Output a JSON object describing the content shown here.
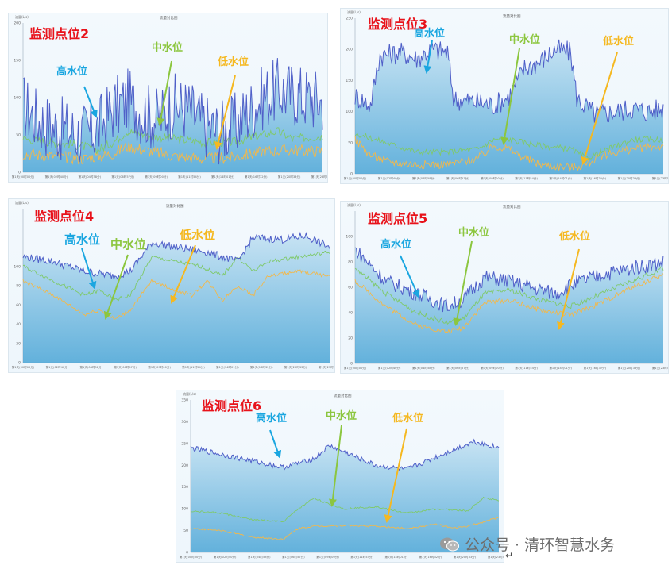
{
  "colors": {
    "high": "#4f5fc8",
    "mid": "#7fc96b",
    "low": "#f2b84b",
    "fill": "#4aa5d6",
    "title": "#e8121a"
  },
  "watermark": {
    "text": "公众号 · 清环智慧水务",
    "icon": "wechat-icon"
  },
  "chart_data": [
    {
      "id": "p2",
      "type": "line",
      "title": "监测点位2",
      "chart_title": "流量对比图",
      "y_unit": "流量(L/s)",
      "ylim": [
        0,
        200
      ],
      "yticks": [
        "0",
        "50",
        "100",
        "150",
        "200"
      ],
      "xticks": [
        "第1天(00时00分)",
        "第1天(02时40分)",
        "第1天(04时58分)",
        "第1天(06时57分)",
        "第1天(09时00分)",
        "第1天(11时54分)",
        "第1天(14时01分)",
        "第1天(16时32分)",
        "第1天(20时33分)",
        "第1天(23时59分)"
      ],
      "annotations": {
        "high": "高水位",
        "mid": "中水位",
        "low": "低水位"
      },
      "series": [
        {
          "key": "high",
          "points": [
            [
              0,
              90
            ],
            [
              0.05,
              70
            ],
            [
              0.1,
              60
            ],
            [
              0.15,
              55
            ],
            [
              0.2,
              50
            ],
            [
              0.25,
              58
            ],
            [
              0.3,
              85
            ],
            [
              0.35,
              95
            ],
            [
              0.4,
              80
            ],
            [
              0.45,
              70
            ],
            [
              0.5,
              90
            ],
            [
              0.55,
              85
            ],
            [
              0.6,
              65
            ],
            [
              0.65,
              55
            ],
            [
              0.7,
              60
            ],
            [
              0.75,
              80
            ],
            [
              0.8,
              100
            ],
            [
              0.85,
              110
            ],
            [
              0.9,
              105
            ],
            [
              0.95,
              100
            ],
            [
              1,
              95
            ]
          ],
          "amp": 45
        },
        {
          "key": "mid",
          "points": [
            [
              0,
              45
            ],
            [
              0.1,
              40
            ],
            [
              0.2,
              35
            ],
            [
              0.25,
              30
            ],
            [
              0.3,
              40
            ],
            [
              0.35,
              55
            ],
            [
              0.4,
              50
            ],
            [
              0.5,
              45
            ],
            [
              0.6,
              40
            ],
            [
              0.7,
              40
            ],
            [
              0.8,
              50
            ],
            [
              0.85,
              55
            ],
            [
              0.9,
              45
            ],
            [
              1,
              48
            ]
          ],
          "amp": 6
        },
        {
          "key": "low",
          "points": [
            [
              0,
              25
            ],
            [
              0.1,
              22
            ],
            [
              0.2,
              18
            ],
            [
              0.3,
              25
            ],
            [
              0.35,
              35
            ],
            [
              0.4,
              30
            ],
            [
              0.5,
              22
            ],
            [
              0.6,
              18
            ],
            [
              0.7,
              20
            ],
            [
              0.8,
              28
            ],
            [
              0.9,
              30
            ],
            [
              1,
              28
            ]
          ],
          "amp": 8
        }
      ]
    },
    {
      "id": "p3",
      "type": "line",
      "title": "监测点位3",
      "chart_title": "流量对比图",
      "y_unit": "流量(L/s)",
      "ylim": [
        0,
        250
      ],
      "yticks": [
        "0",
        "50",
        "100",
        "150",
        "200",
        "250"
      ],
      "xticks": [
        "第1天(00时00分)",
        "第1天(02时40分)",
        "第1天(04时58分)",
        "第1天(06时57分)",
        "第1天(09时00分)",
        "第1天(11時54分)",
        "第1天(14时01分)",
        "第1天(16时32分)",
        "第1天(20时33分)",
        "第1天(23时59分)"
      ],
      "annotations": {
        "high": "高水位",
        "mid": "中水位",
        "low": "低水位"
      },
      "series": [
        {
          "key": "high",
          "points": [
            [
              0,
              125
            ],
            [
              0.05,
              110
            ],
            [
              0.08,
              190
            ],
            [
              0.15,
              195
            ],
            [
              0.2,
              185
            ],
            [
              0.25,
              200
            ],
            [
              0.3,
              195
            ],
            [
              0.32,
              120
            ],
            [
              0.4,
              115
            ],
            [
              0.45,
              110
            ],
            [
              0.5,
              125
            ],
            [
              0.55,
              170
            ],
            [
              0.6,
              180
            ],
            [
              0.65,
              200
            ],
            [
              0.7,
              195
            ],
            [
              0.72,
              120
            ],
            [
              0.78,
              95
            ],
            [
              0.85,
              100
            ],
            [
              0.9,
              105
            ],
            [
              0.95,
              100
            ],
            [
              1,
              105
            ]
          ],
          "amp": 18
        },
        {
          "key": "mid",
          "points": [
            [
              0,
              65
            ],
            [
              0.1,
              50
            ],
            [
              0.2,
              35
            ],
            [
              0.3,
              35
            ],
            [
              0.4,
              40
            ],
            [
              0.45,
              55
            ],
            [
              0.5,
              55
            ],
            [
              0.6,
              45
            ],
            [
              0.7,
              40
            ],
            [
              0.75,
              25
            ],
            [
              0.8,
              35
            ],
            [
              0.9,
              55
            ],
            [
              1,
              55
            ]
          ],
          "amp": 5
        },
        {
          "key": "low",
          "points": [
            [
              0,
              55
            ],
            [
              0.05,
              30
            ],
            [
              0.1,
              20
            ],
            [
              0.2,
              15
            ],
            [
              0.3,
              15
            ],
            [
              0.4,
              25
            ],
            [
              0.45,
              45
            ],
            [
              0.5,
              40
            ],
            [
              0.55,
              25
            ],
            [
              0.6,
              15
            ],
            [
              0.7,
              10
            ],
            [
              0.75,
              15
            ],
            [
              0.8,
              30
            ],
            [
              0.9,
              40
            ],
            [
              1,
              45
            ]
          ],
          "amp": 7
        }
      ]
    },
    {
      "id": "p4",
      "type": "line",
      "title": "监测点位4",
      "chart_title": "流量对比图",
      "y_unit": "流量(L/s)",
      "ylim": [
        0,
        160
      ],
      "yticks": [
        "0",
        "20",
        "40",
        "60",
        "80",
        "100"
      ],
      "xticks": [
        "第1天(00时00分)",
        "第1天(02时40分)",
        "第1天(04时58分)",
        "第1天(06时57分)",
        "第1天(09时00分)",
        "第1天(11时54分)",
        "第1天(14时01分)",
        "第1天(16时32分)",
        "第1天(20时33分)",
        "第1天(23时59分)"
      ],
      "annotations": {
        "high": "高水位",
        "mid": "中水位",
        "low": "低水位"
      },
      "series": [
        {
          "key": "high",
          "points": [
            [
              0,
              110
            ],
            [
              0.1,
              105
            ],
            [
              0.2,
              95
            ],
            [
              0.3,
              90
            ],
            [
              0.35,
              95
            ],
            [
              0.42,
              125
            ],
            [
              0.5,
              120
            ],
            [
              0.6,
              115
            ],
            [
              0.65,
              110
            ],
            [
              0.7,
              105
            ],
            [
              0.75,
              130
            ],
            [
              0.85,
              128
            ],
            [
              0.92,
              132
            ],
            [
              1,
              120
            ]
          ],
          "amp": 4
        },
        {
          "key": "mid",
          "points": [
            [
              0,
              100
            ],
            [
              0.1,
              85
            ],
            [
              0.2,
              70
            ],
            [
              0.25,
              75
            ],
            [
              0.3,
              65
            ],
            [
              0.35,
              70
            ],
            [
              0.42,
              110
            ],
            [
              0.5,
              105
            ],
            [
              0.58,
              100
            ],
            [
              0.65,
              90
            ],
            [
              0.7,
              110
            ],
            [
              0.75,
              95
            ],
            [
              0.8,
              105
            ],
            [
              0.9,
              110
            ],
            [
              1,
              115
            ]
          ],
          "amp": 2
        },
        {
          "key": "low",
          "points": [
            [
              0,
              85
            ],
            [
              0.1,
              70
            ],
            [
              0.2,
              50
            ],
            [
              0.25,
              55
            ],
            [
              0.3,
              45
            ],
            [
              0.35,
              55
            ],
            [
              0.42,
              85
            ],
            [
              0.5,
              75
            ],
            [
              0.55,
              70
            ],
            [
              0.6,
              85
            ],
            [
              0.65,
              65
            ],
            [
              0.7,
              80
            ],
            [
              0.75,
              70
            ],
            [
              0.8,
              90
            ],
            [
              0.9,
              95
            ],
            [
              1,
              90
            ]
          ],
          "amp": 2
        }
      ]
    },
    {
      "id": "p5",
      "type": "line",
      "title": "监测点位5",
      "chart_title": "流量对比图",
      "y_unit": "流量(L/s)",
      "ylim": [
        0,
        120
      ],
      "yticks": [
        "0",
        "20",
        "40",
        "60",
        "80",
        "100"
      ],
      "xticks": [
        "第1天(00时00分)",
        "第1天(02时40分)",
        "第1天(04时58分)",
        "第1天(06时57分)",
        "第1天(09时00分)",
        "第1天(11时54分)",
        "第1天(14时01分)",
        "第1天(16时32分)",
        "第1天(20时33分)",
        "第1天(23时59分)"
      ],
      "annotations": {
        "high": "高水位",
        "mid": "中水位",
        "low": "低水位"
      },
      "series": [
        {
          "key": "high",
          "points": [
            [
              0,
              90
            ],
            [
              0.1,
              65
            ],
            [
              0.2,
              55
            ],
            [
              0.3,
              45
            ],
            [
              0.35,
              50
            ],
            [
              0.42,
              68
            ],
            [
              0.5,
              65
            ],
            [
              0.6,
              58
            ],
            [
              0.65,
              55
            ],
            [
              0.7,
              62
            ],
            [
              0.8,
              70
            ],
            [
              0.9,
              75
            ],
            [
              1,
              80
            ]
          ],
          "amp": 6
        },
        {
          "key": "mid",
          "points": [
            [
              0,
              75
            ],
            [
              0.1,
              55
            ],
            [
              0.2,
              40
            ],
            [
              0.3,
              32
            ],
            [
              0.35,
              35
            ],
            [
              0.42,
              55
            ],
            [
              0.5,
              58
            ],
            [
              0.6,
              50
            ],
            [
              0.7,
              45
            ],
            [
              0.8,
              55
            ],
            [
              0.9,
              65
            ],
            [
              1,
              75
            ]
          ],
          "amp": 2
        },
        {
          "key": "low",
          "points": [
            [
              0,
              65
            ],
            [
              0.1,
              45
            ],
            [
              0.2,
              30
            ],
            [
              0.3,
              25
            ],
            [
              0.35,
              28
            ],
            [
              0.42,
              48
            ],
            [
              0.5,
              50
            ],
            [
              0.6,
              42
            ],
            [
              0.7,
              38
            ],
            [
              0.8,
              48
            ],
            [
              0.9,
              60
            ],
            [
              1,
              70
            ]
          ],
          "amp": 2
        }
      ]
    },
    {
      "id": "p6",
      "type": "line",
      "title": "监测点位6",
      "chart_title": "流量对比图",
      "y_unit": "流量(L/s)",
      "ylim": [
        0,
        350
      ],
      "yticks": [
        "0",
        "50",
        "100",
        "150",
        "200",
        "250",
        "300",
        "350"
      ],
      "xticks": [
        "第1天(00时00分)",
        "第1天(02时40分)",
        "第1天(04时58分)",
        "第1天(06时57分)",
        "第1天(09时00分)",
        "第1天(11时54分)",
        "第1天(14时01分)",
        "第1天(16时32分)",
        "第1天(20时33分)",
        "第1天(23时59分)"
      ],
      "annotations": {
        "high": "高水位",
        "mid": "中水位",
        "low": "低水位"
      },
      "series": [
        {
          "key": "high",
          "points": [
            [
              0,
              240
            ],
            [
              0.1,
              225
            ],
            [
              0.2,
              210
            ],
            [
              0.3,
              195
            ],
            [
              0.4,
              215
            ],
            [
              0.45,
              245
            ],
            [
              0.5,
              230
            ],
            [
              0.6,
              200
            ],
            [
              0.7,
              190
            ],
            [
              0.75,
              205
            ],
            [
              0.85,
              235
            ],
            [
              0.92,
              255
            ],
            [
              1,
              240
            ]
          ],
          "amp": 6
        },
        {
          "key": "mid",
          "points": [
            [
              0,
              95
            ],
            [
              0.1,
              90
            ],
            [
              0.2,
              75
            ],
            [
              0.3,
              70
            ],
            [
              0.35,
              100
            ],
            [
              0.4,
              125
            ],
            [
              0.45,
              110
            ],
            [
              0.5,
              100
            ],
            [
              0.6,
              105
            ],
            [
              0.7,
              90
            ],
            [
              0.8,
              100
            ],
            [
              0.9,
              95
            ],
            [
              0.95,
              125
            ],
            [
              1,
              120
            ]
          ],
          "amp": 2
        },
        {
          "key": "low",
          "points": [
            [
              0,
              55
            ],
            [
              0.1,
              50
            ],
            [
              0.2,
              35
            ],
            [
              0.3,
              30
            ],
            [
              0.35,
              55
            ],
            [
              0.4,
              60
            ],
            [
              0.5,
              62
            ],
            [
              0.6,
              60
            ],
            [
              0.7,
              55
            ],
            [
              0.8,
              65
            ],
            [
              0.85,
              55
            ],
            [
              0.9,
              60
            ],
            [
              1,
              80
            ]
          ],
          "amp": 2
        }
      ]
    }
  ]
}
